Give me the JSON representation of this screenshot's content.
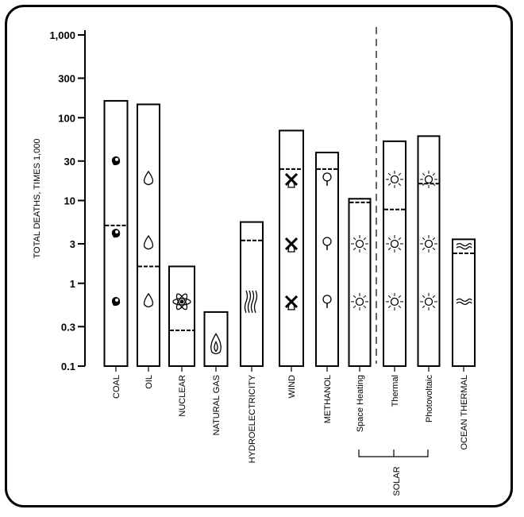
{
  "chart_data": {
    "type": "bar",
    "title": "",
    "xlabel": "",
    "ylabel": "TOTAL DEATHS, TIMES 1,000",
    "yscale": "log",
    "ylim": [
      0.1,
      1000
    ],
    "yticks": [
      {
        "value": 0.1,
        "label": "0.1"
      },
      {
        "value": 0.3,
        "label": "0.3"
      },
      {
        "value": 1,
        "label": "1"
      },
      {
        "value": 3,
        "label": "3"
      },
      {
        "value": 10,
        "label": "10"
      },
      {
        "value": 30,
        "label": "30"
      },
      {
        "value": 100,
        "label": "100"
      },
      {
        "value": 300,
        "label": "300"
      },
      {
        "value": 1000,
        "label": "1,000"
      }
    ],
    "categories": [
      "COAL",
      "OIL",
      "NUCLEAR",
      "NATURAL GAS",
      "HYDROELECTRICITY",
      "WIND",
      "METHANOL",
      "Space Heating",
      "Thermal",
      "Photovoltaic",
      "OCEAN THERMAL"
    ],
    "group_label": "SOLAR",
    "group_members": [
      "Space Heating",
      "Thermal",
      "Photovoltaic"
    ],
    "series": [
      {
        "values": [
          160,
          145,
          1.6,
          0.45,
          5.5,
          70,
          38,
          10.5,
          52,
          60,
          3.4
        ]
      },
      {
        "values": [
          5,
          1.6,
          0.27,
          null,
          3.3,
          24,
          24,
          9.5,
          7.8,
          16,
          2.3
        ]
      }
    ],
    "icons": [
      "coal-lump-icon",
      "oil-drop-icon",
      "atom-icon",
      "flame-icon",
      "water-wave-icon",
      "windmill-icon",
      "tree-icon",
      "sun-icon",
      "sun-icon",
      "sun-icon",
      "wave-icon"
    ],
    "colors": {
      "line": "#000000",
      "fill": "#ffffff"
    }
  }
}
